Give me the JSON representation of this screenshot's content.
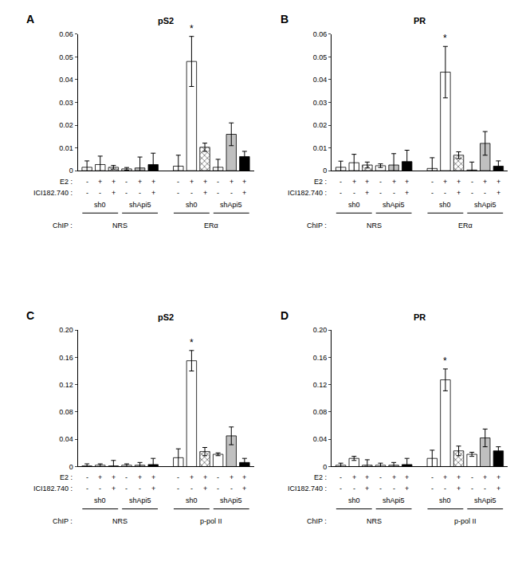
{
  "chart_data": [
    {
      "type": "bar",
      "panel": "A",
      "title": "pS2",
      "categories": [
        null,
        null,
        null,
        null,
        null,
        null,
        null,
        null,
        null,
        null,
        null,
        null
      ],
      "e2": [
        "-",
        "+",
        "+",
        "-",
        "+",
        "+",
        "-",
        "+",
        "+",
        "-",
        "+",
        "+"
      ],
      "ici": [
        "-",
        "-",
        "+",
        "-",
        "-",
        "+",
        "-",
        "-",
        "+",
        "-",
        "-",
        "+"
      ],
      "shrna": [
        "sh0",
        "sh0",
        "sh0",
        "shApi5",
        "shApi5",
        "shApi5",
        "sh0",
        "sh0",
        "sh0",
        "shApi5",
        "shApi5",
        "shApi5"
      ],
      "chip": [
        "NRS",
        "NRS",
        "NRS",
        "NRS",
        "NRS",
        "NRS",
        "ERα",
        "ERα",
        "ERα",
        "ERα",
        "ERα",
        "ERα"
      ],
      "row_labels": {
        "e2": "E2 :",
        "ici": "ICI182.740 :",
        "chip": "ChIP :"
      },
      "values": [
        0.0015,
        0.0027,
        0.0015,
        0.0008,
        0.0012,
        0.0027,
        0.002,
        0.048,
        0.0103,
        0.0015,
        0.016,
        0.0062
      ],
      "errors": [
        0.0028,
        0.0037,
        0.0008,
        0.0006,
        0.0048,
        0.005,
        0.0048,
        0.011,
        0.0018,
        0.0035,
        0.005,
        0.0023
      ],
      "significance": [
        null,
        null,
        null,
        null,
        null,
        null,
        null,
        "*",
        null,
        null,
        null,
        null
      ],
      "colors": [
        "#ffffff",
        "#ffffff",
        "#555555",
        "#ffffff",
        "#c0c0c0",
        "#000000",
        "#ffffff",
        "#ffffff",
        "#555555",
        "#ffffff",
        "#c0c0c0",
        "#000000"
      ],
      "ylim": [
        0,
        0.06
      ],
      "yticks": [
        0,
        0.01,
        0.02,
        0.03,
        0.04,
        0.05,
        0.06
      ],
      "grid": false
    },
    {
      "type": "bar",
      "panel": "B",
      "title": "PR",
      "categories": [
        null,
        null,
        null,
        null,
        null,
        null,
        null,
        null,
        null,
        null,
        null,
        null
      ],
      "e2": [
        "-",
        "+",
        "+",
        "-",
        "+",
        "+",
        "-",
        "+",
        "+",
        "-",
        "+",
        "+"
      ],
      "ici": [
        "-",
        "-",
        "+",
        "-",
        "-",
        "+",
        "-",
        "-",
        "+",
        "-",
        "-",
        "+"
      ],
      "shrna": [
        "sh0",
        "sh0",
        "sh0",
        "shApi5",
        "shApi5",
        "shApi5",
        "sh0",
        "sh0",
        "sh0",
        "shApi5",
        "shApi5",
        "shApi5"
      ],
      "chip": [
        "NRS",
        "NRS",
        "NRS",
        "NRS",
        "NRS",
        "NRS",
        "ERα",
        "ERα",
        "ERα",
        "ERα",
        "ERα",
        "ERα"
      ],
      "row_labels": {
        "e2": "E2 :",
        "ici": "ICI182.740 :",
        "chip": "ChIP :"
      },
      "values": [
        0.0015,
        0.0035,
        0.0025,
        0.0022,
        0.0025,
        0.004,
        0.001,
        0.0433,
        0.0068,
        0.0003,
        0.012,
        0.002
      ],
      "errors": [
        0.0027,
        0.0037,
        0.0013,
        0.0008,
        0.005,
        0.005,
        0.0047,
        0.0113,
        0.0015,
        0.0035,
        0.0052,
        0.0023
      ],
      "significance": [
        null,
        null,
        null,
        null,
        null,
        null,
        null,
        "*",
        null,
        null,
        null,
        null
      ],
      "colors": [
        "#ffffff",
        "#ffffff",
        "#555555",
        "#ffffff",
        "#c0c0c0",
        "#000000",
        "#ffffff",
        "#ffffff",
        "#555555",
        "#ffffff",
        "#c0c0c0",
        "#000000"
      ],
      "ylim": [
        0,
        0.06
      ],
      "yticks": [
        0,
        0.01,
        0.02,
        0.03,
        0.04,
        0.05,
        0.06
      ],
      "grid": false
    },
    {
      "type": "bar",
      "panel": "C",
      "title": "pS2",
      "categories": [
        null,
        null,
        null,
        null,
        null,
        null,
        null,
        null,
        null,
        null,
        null,
        null
      ],
      "e2": [
        "-",
        "+",
        "+",
        "-",
        "+",
        "+",
        "-",
        "+",
        "+",
        "-",
        "+",
        "+"
      ],
      "ici": [
        "-",
        "-",
        "+",
        "-",
        "-",
        "+",
        "-",
        "-",
        "+",
        "-",
        "-",
        "+"
      ],
      "shrna": [
        "sh0",
        "sh0",
        "sh0",
        "shApi5",
        "shApi5",
        "shApi5",
        "sh0",
        "sh0",
        "sh0",
        "shApi5",
        "shApi5",
        "shApi5"
      ],
      "chip": [
        "NRS",
        "NRS",
        "NRS",
        "NRS",
        "NRS",
        "NRS",
        "p-pol II",
        "p-pol II",
        "p-pol II",
        "p-pol II",
        "p-pol II",
        "p-pol II"
      ],
      "row_labels": {
        "e2": "E2 :",
        "ici": "ICI182.740 :",
        "chip": "ChIP :"
      },
      "values": [
        0.001,
        0.002,
        0.001,
        0.002,
        0.002,
        0.003,
        0.013,
        0.155,
        0.022,
        0.018,
        0.045,
        0.006
      ],
      "errors": [
        0.003,
        0.002,
        0.008,
        0.002,
        0.004,
        0.009,
        0.013,
        0.015,
        0.006,
        0.002,
        0.013,
        0.006
      ],
      "significance": [
        null,
        null,
        null,
        null,
        null,
        null,
        null,
        "*",
        null,
        null,
        null,
        null
      ],
      "colors": [
        "#ffffff",
        "#ffffff",
        "#555555",
        "#ffffff",
        "#c0c0c0",
        "#000000",
        "#ffffff",
        "#ffffff",
        "#555555",
        "#ffffff",
        "#c0c0c0",
        "#000000"
      ],
      "ylim": [
        0,
        0.2
      ],
      "yticks": [
        0,
        0.04,
        0.08,
        0.12,
        0.16,
        {
          "value": 0.2,
          "label": "0.20"
        }
      ],
      "grid": false
    },
    {
      "type": "bar",
      "panel": "D",
      "title": "PR",
      "categories": [
        null,
        null,
        null,
        null,
        null,
        null,
        null,
        null,
        null,
        null,
        null,
        null
      ],
      "e2": [
        "-",
        "+",
        "+",
        "-",
        "+",
        "+",
        "-",
        "+",
        "+",
        "-",
        "+",
        "+"
      ],
      "ici": [
        "-",
        "-",
        "+",
        "-",
        "-",
        "+",
        "-",
        "-",
        "+",
        "-",
        "-",
        "+"
      ],
      "shrna": [
        "sh0",
        "sh0",
        "sh0",
        "shApi5",
        "shApi5",
        "shApi5",
        "sh0",
        "sh0",
        "sh0",
        "shApi5",
        "shApi5",
        "shApi5"
      ],
      "chip": [
        "NRS",
        "NRS",
        "NRS",
        "NRS",
        "NRS",
        "NRS",
        "p-pol II",
        "p-pol II",
        "p-pol II",
        "p-pol II",
        "p-pol II",
        "p-pol II"
      ],
      "row_labels": {
        "e2": "E2 :",
        "ici": "ICI182.740 :",
        "chip": "ChIP :"
      },
      "values": [
        0.002,
        0.012,
        0.002,
        0.002,
        0.002,
        0.003,
        0.012,
        0.127,
        0.023,
        0.018,
        0.042,
        0.023
      ],
      "errors": [
        0.003,
        0.003,
        0.008,
        0.003,
        0.004,
        0.009,
        0.012,
        0.016,
        0.007,
        0.003,
        0.013,
        0.006
      ],
      "significance": [
        null,
        null,
        null,
        null,
        null,
        null,
        null,
        "*",
        null,
        null,
        null,
        null
      ],
      "colors": [
        "#ffffff",
        "#ffffff",
        "#555555",
        "#ffffff",
        "#c0c0c0",
        "#000000",
        "#ffffff",
        "#ffffff",
        "#555555",
        "#ffffff",
        "#c0c0c0",
        "#000000"
      ],
      "ylim": [
        0,
        0.2
      ],
      "yticks": [
        0,
        0.04,
        0.08,
        0.12,
        0.16,
        {
          "value": 0.2,
          "label": "0.20"
        }
      ],
      "grid": false
    }
  ]
}
